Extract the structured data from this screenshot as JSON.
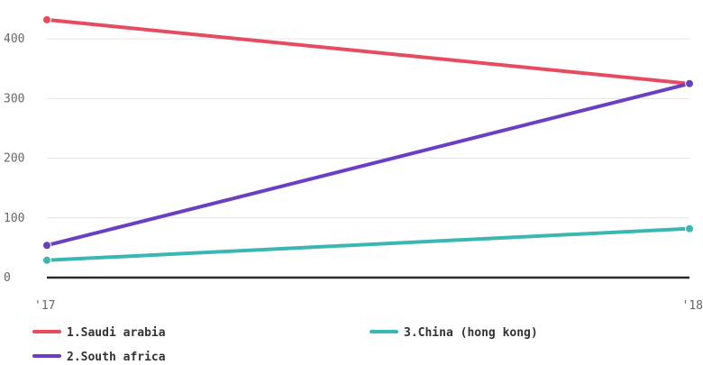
{
  "chart_data": {
    "type": "line",
    "x": [
      "'17",
      "'18"
    ],
    "ylim": [
      0,
      450
    ],
    "yticks": [
      0,
      100,
      200,
      300,
      400
    ],
    "grid": true,
    "legend_position": "bottom",
    "series": [
      {
        "name": "1.Saudi arabia",
        "color": "#e84a5f",
        "values": [
          432,
          325
        ]
      },
      {
        "name": "2.South africa",
        "color": "#6a3fc4",
        "values": [
          54,
          325
        ]
      },
      {
        "name": "3.China (hong kong)",
        "color": "#3ab7b0",
        "values": [
          29,
          82
        ]
      }
    ]
  }
}
